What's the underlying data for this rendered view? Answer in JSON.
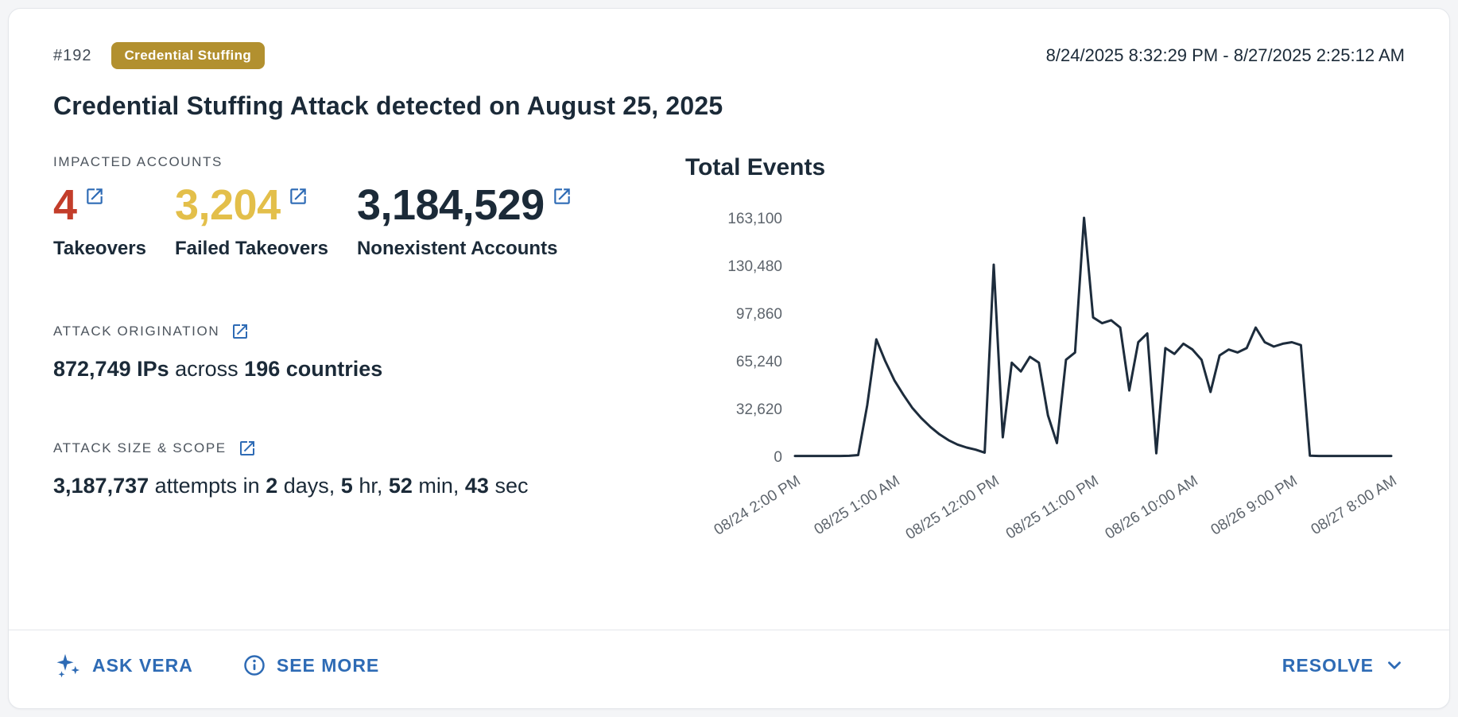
{
  "colors": {
    "accent_blue": "#2e6bb5",
    "badge_gold": "#b2902f",
    "stat_red": "#c33d2a",
    "stat_gold": "#e3bf4a",
    "navy": "#1b2a38",
    "chart_line": "#1d2c3c"
  },
  "header": {
    "incident_id": "#192",
    "badge_label": "Credential Stuffing",
    "date_range": "8/24/2025 8:32:29 PM - 8/27/2025 2:25:12 AM"
  },
  "title": "Credential Stuffing Attack detected on August 25, 2025",
  "impacted_accounts": {
    "section_label": "IMPACTED ACCOUNTS",
    "stats": [
      {
        "key": "takeovers",
        "value": "4",
        "label": "Takeovers",
        "color": "#c33d2a"
      },
      {
        "key": "failed-takeovers",
        "value": "3,204",
        "label": "Failed Takeovers",
        "color": "#e3bf4a"
      },
      {
        "key": "nonexistent-accounts",
        "value": "3,184,529",
        "label": "Nonexistent Accounts",
        "color": "#1b2a38"
      }
    ]
  },
  "attack_origination": {
    "section_label": "ATTACK ORIGINATION",
    "segments": [
      {
        "text": "872,749 IPs",
        "bold": true
      },
      {
        "text": " across ",
        "bold": false
      },
      {
        "text": "196 countries",
        "bold": true
      }
    ]
  },
  "attack_size_scope": {
    "section_label": "ATTACK SIZE & SCOPE",
    "segments": [
      {
        "text": "3,187,737",
        "bold": true
      },
      {
        "text": " attempts in ",
        "bold": false
      },
      {
        "text": "2",
        "bold": true
      },
      {
        "text": " days, ",
        "bold": false
      },
      {
        "text": "5",
        "bold": true
      },
      {
        "text": " hr, ",
        "bold": false
      },
      {
        "text": "52",
        "bold": true
      },
      {
        "text": " min, ",
        "bold": false
      },
      {
        "text": "43",
        "bold": true
      },
      {
        "text": " sec",
        "bold": false
      }
    ]
  },
  "chart_data": {
    "type": "line",
    "title": "Total Events",
    "xlabel": "",
    "ylabel": "",
    "grid": false,
    "legend": false,
    "line_color": "#1d2c3c",
    "ylim": [
      0,
      163100
    ],
    "x_unit": "hours_from_2025-08-24_2:00_PM",
    "x": [
      0,
      1,
      2,
      3,
      4,
      5,
      6,
      7,
      8,
      9,
      10,
      11,
      12,
      13,
      14,
      15,
      16,
      17,
      18,
      19,
      20,
      21,
      22,
      23,
      24,
      25,
      26,
      27,
      28,
      29,
      30,
      31,
      32,
      33,
      34,
      35,
      36,
      37,
      38,
      39,
      40,
      41,
      42,
      43,
      44,
      45,
      46,
      47,
      48,
      49,
      50,
      51,
      52,
      53,
      54,
      55,
      56,
      57,
      58,
      59,
      60,
      61,
      62,
      63,
      64,
      65,
      66
    ],
    "values": [
      200,
      200,
      200,
      200,
      200,
      200,
      300,
      800,
      35000,
      80000,
      65000,
      52000,
      42000,
      33000,
      26000,
      20000,
      15000,
      11000,
      8000,
      6000,
      4500,
      2500,
      131000,
      13000,
      64000,
      58000,
      68000,
      64000,
      28000,
      9000,
      66000,
      71000,
      163100,
      95000,
      91000,
      93000,
      88000,
      45000,
      78000,
      84000,
      2000,
      74000,
      70000,
      77000,
      73000,
      66000,
      44000,
      69000,
      73000,
      71000,
      74000,
      88000,
      78000,
      75000,
      77000,
      78000,
      76000,
      400,
      200,
      200,
      200,
      200,
      200,
      200,
      200,
      200,
      200
    ],
    "y_ticks": [
      {
        "value": 0,
        "label": "0"
      },
      {
        "value": 32620,
        "label": "32,620"
      },
      {
        "value": 65240,
        "label": "65,240"
      },
      {
        "value": 97860,
        "label": "97,860"
      },
      {
        "value": 130480,
        "label": "130,480"
      },
      {
        "value": 163100,
        "label": "163,100"
      }
    ],
    "x_ticks": [
      {
        "hour": 0,
        "label": "08/24 2:00 PM"
      },
      {
        "hour": 11,
        "label": "08/25 1:00 AM"
      },
      {
        "hour": 22,
        "label": "08/25 12:00 PM"
      },
      {
        "hour": 33,
        "label": "08/25 11:00 PM"
      },
      {
        "hour": 44,
        "label": "08/26 10:00 AM"
      },
      {
        "hour": 55,
        "label": "08/26 9:00 PM"
      },
      {
        "hour": 66,
        "label": "08/27 8:00 AM"
      }
    ]
  },
  "footer": {
    "ask_vera_label": "ASK VERA",
    "see_more_label": "SEE MORE",
    "resolve_label": "RESOLVE"
  }
}
